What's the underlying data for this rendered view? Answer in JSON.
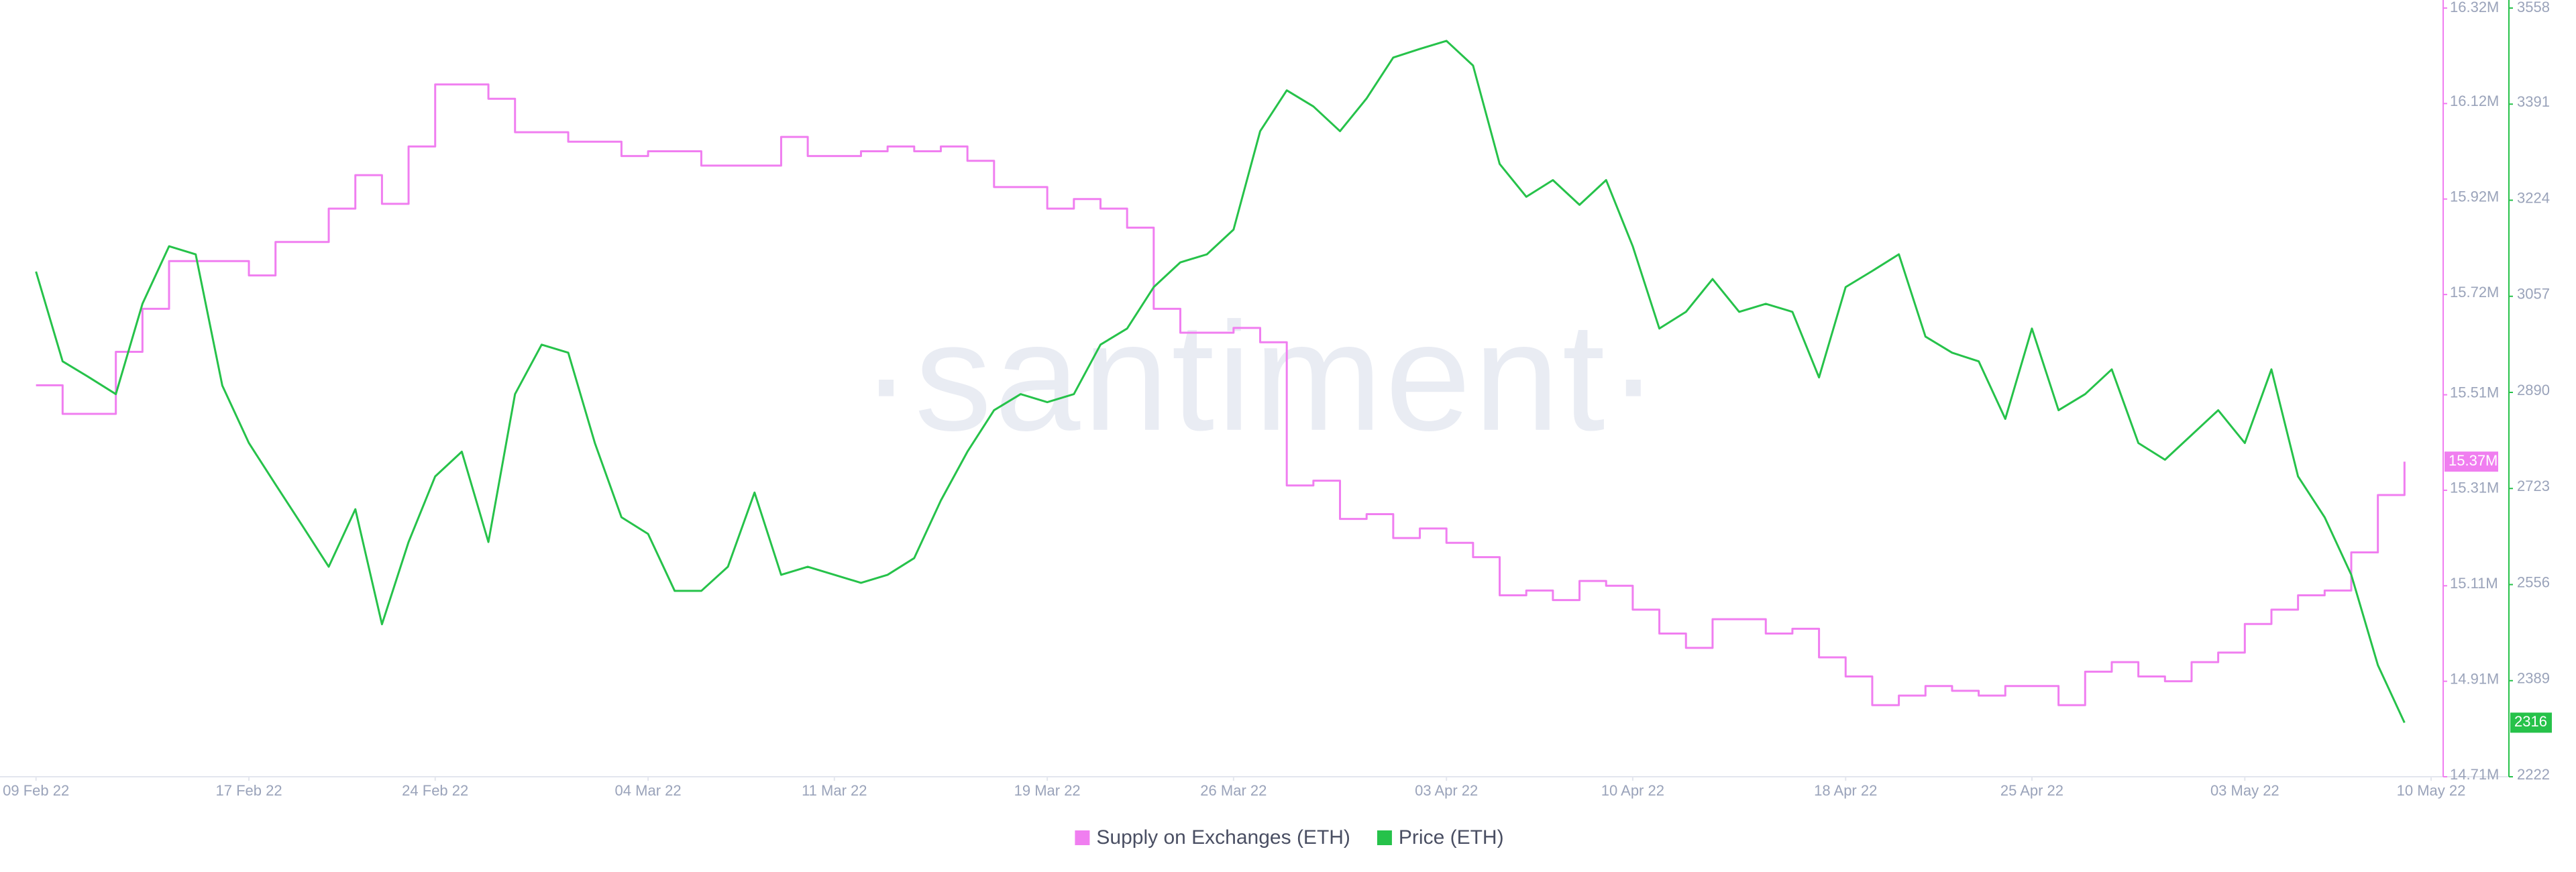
{
  "chart_data": {
    "type": "line",
    "watermark": "·santiment·",
    "x": [
      "09 Feb 22",
      "10 Feb 22",
      "11 Feb 22",
      "12 Feb 22",
      "13 Feb 22",
      "14 Feb 22",
      "15 Feb 22",
      "16 Feb 22",
      "17 Feb 22",
      "18 Feb 22",
      "19 Feb 22",
      "20 Feb 22",
      "21 Feb 22",
      "22 Feb 22",
      "23 Feb 22",
      "24 Feb 22",
      "25 Feb 22",
      "26 Feb 22",
      "27 Feb 22",
      "28 Feb 22",
      "01 Mar 22",
      "02 Mar 22",
      "03 Mar 22",
      "04 Mar 22",
      "05 Mar 22",
      "06 Mar 22",
      "07 Mar 22",
      "08 Mar 22",
      "09 Mar 22",
      "10 Mar 22",
      "11 Mar 22",
      "12 Mar 22",
      "13 Mar 22",
      "14 Mar 22",
      "15 Mar 22",
      "16 Mar 22",
      "17 Mar 22",
      "18 Mar 22",
      "19 Mar 22",
      "20 Mar 22",
      "21 Mar 22",
      "22 Mar 22",
      "23 Mar 22",
      "24 Mar 22",
      "25 Mar 22",
      "26 Mar 22",
      "27 Mar 22",
      "28 Mar 22",
      "29 Mar 22",
      "30 Mar 22",
      "31 Mar 22",
      "01 Apr 22",
      "02 Apr 22",
      "03 Apr 22",
      "04 Apr 22",
      "05 Apr 22",
      "06 Apr 22",
      "07 Apr 22",
      "08 Apr 22",
      "09 Apr 22",
      "10 Apr 22",
      "11 Apr 22",
      "12 Apr 22",
      "13 Apr 22",
      "14 Apr 22",
      "15 Apr 22",
      "16 Apr 22",
      "17 Apr 22",
      "18 Apr 22",
      "19 Apr 22",
      "20 Apr 22",
      "21 Apr 22",
      "22 Apr 22",
      "23 Apr 22",
      "24 Apr 22",
      "25 Apr 22",
      "26 Apr 22",
      "27 Apr 22",
      "28 Apr 22",
      "29 Apr 22",
      "30 Apr 22",
      "01 May 22",
      "02 May 22",
      "03 May 22",
      "04 May 22",
      "05 May 22",
      "06 May 22",
      "07 May 22",
      "08 May 22",
      "09 May 22"
    ],
    "xlim": [
      "08 Feb 22",
      "10 May 22"
    ],
    "xticks": [
      "09 Feb 22",
      "17 Feb 22",
      "24 Feb 22",
      "04 Mar 22",
      "11 Mar 22",
      "19 Mar 22",
      "26 Mar 22",
      "03 Apr 22",
      "10 Apr 22",
      "18 Apr 22",
      "25 Apr 22",
      "03 May 22",
      "10 May 22"
    ],
    "ylim": [
      14710000,
      16320000
    ],
    "yticks": [
      {
        "value": 14710000,
        "label": "14.71M"
      },
      {
        "value": 14910000,
        "label": "14.91M"
      },
      {
        "value": 15110000,
        "label": "15.11M"
      },
      {
        "value": 15310000,
        "label": "15.31M"
      },
      {
        "value": 15510000,
        "label": "15.51M"
      },
      {
        "value": 15720000,
        "label": "15.72M"
      },
      {
        "value": 15920000,
        "label": "15.92M"
      },
      {
        "value": 16120000,
        "label": "16.12M"
      },
      {
        "value": 16320000,
        "label": "16.32M"
      }
    ],
    "y2lim": [
      2222,
      3558
    ],
    "y2ticks": [
      2222,
      2389,
      2556,
      2723,
      2890,
      3057,
      3224,
      3391,
      3558
    ],
    "series": [
      {
        "name": "Supply on Exchanges (ETH)",
        "color": "#f07ef0",
        "step": true,
        "values": [
          15530000,
          15470000,
          15470000,
          15600000,
          15690000,
          15790000,
          15790000,
          15790000,
          15760000,
          15830000,
          15830000,
          15900000,
          15970000,
          15910000,
          16030000,
          16160000,
          16160000,
          16130000,
          16060000,
          16060000,
          16040000,
          16040000,
          16010000,
          16020000,
          16020000,
          15990000,
          15990000,
          15990000,
          16050000,
          16010000,
          16010000,
          16020000,
          16030000,
          16020000,
          16030000,
          16000000,
          15945000,
          15945000,
          15900000,
          15920000,
          15900000,
          15860000,
          15690000,
          15640000,
          15640000,
          15650000,
          15620000,
          15320000,
          15330000,
          15250000,
          15260000,
          15210000,
          15230000,
          15200000,
          15170000,
          15090000,
          15100000,
          15080000,
          15120000,
          15110000,
          15060000,
          15010000,
          14980000,
          15040000,
          15040000,
          15010000,
          15020000,
          14960000,
          14920000,
          14860000,
          14880000,
          14900000,
          14890000,
          14880000,
          14900000,
          14900000,
          14860000,
          14930000,
          14950000,
          14920000,
          14910000,
          14950000,
          14970000,
          15030000,
          15060000,
          15090000,
          15100000,
          15180000,
          15300000,
          15370000
        ],
        "value_labels": [
          null,
          null,
          null,
          null,
          null,
          null,
          null,
          null,
          null,
          null,
          null,
          null,
          null,
          null,
          null,
          null,
          null,
          null,
          null,
          null,
          null,
          null,
          null,
          null,
          null,
          null,
          null,
          null,
          null,
          null,
          null,
          null,
          null,
          null,
          null,
          null,
          null,
          null,
          null,
          null,
          null,
          null,
          null,
          null,
          null,
          null,
          null,
          null,
          null,
          null,
          null,
          null,
          null,
          null,
          null,
          null,
          null,
          null,
          null,
          null,
          null,
          null,
          null,
          null,
          null,
          null,
          null,
          null,
          null,
          null,
          null,
          null,
          null,
          null,
          null,
          null,
          null,
          null,
          null,
          null,
          null,
          null,
          null,
          null,
          null,
          null,
          null,
          null,
          null,
          "15.37M"
        ]
      },
      {
        "name": "Price (ETH)",
        "color": "#26c24a",
        "axis": "y2",
        "values": [
          3100,
          2944,
          2916,
          2887,
          3044,
          3144,
          3130,
          2902,
          2802,
          2730,
          2659,
          2587,
          2687,
          2487,
          2630,
          2744,
          2787,
          2630,
          2887,
          2973,
          2959,
          2802,
          2673,
          2644,
          2545,
          2545,
          2587,
          2716,
          2573,
          2587,
          2573,
          2559,
          2573,
          2602,
          2702,
          2787,
          2859,
          2887,
          2873,
          2887,
          2973,
          3001,
          3073,
          3116,
          3130,
          3173,
          3344,
          3415,
          3387,
          3344,
          3401,
          3472,
          3487,
          3501,
          3458,
          3287,
          3230,
          3259,
          3216,
          3259,
          3144,
          3001,
          3030,
          3087,
          3030,
          3044,
          3030,
          2916,
          3073,
          3101,
          3130,
          2987,
          2959,
          2944,
          2844,
          3001,
          2859,
          2887,
          2930,
          2802,
          2773,
          2816,
          2859,
          2802,
          2930,
          2744,
          2673,
          2573,
          2416,
          2316
        ]
      }
    ]
  }
}
